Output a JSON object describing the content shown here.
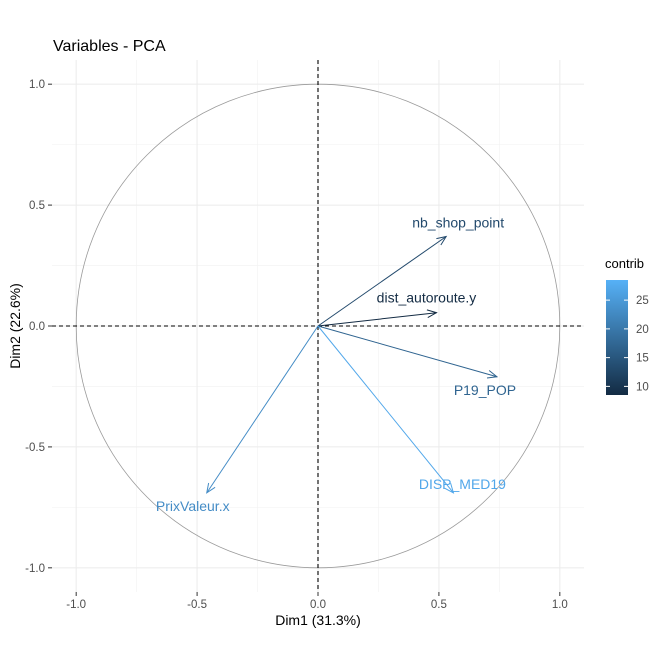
{
  "chart_data": {
    "type": "scatter",
    "title": "Variables - PCA",
    "xlabel": "Dim1 (31.3%)",
    "ylabel": "Dim2 (22.6%)",
    "xlim": [
      -1.1,
      1.1
    ],
    "ylim": [
      -1.1,
      1.1
    ],
    "x_ticks": [
      -1.0,
      -0.5,
      0.0,
      0.5,
      1.0
    ],
    "y_ticks": [
      -1.0,
      -0.5,
      0.0,
      0.5,
      1.0
    ],
    "x_tick_labels": [
      "-1.0",
      "-0.5",
      "0.0",
      "0.5",
      "1.0"
    ],
    "y_tick_labels": [
      "-1.0",
      "-0.5",
      "0.0",
      "0.5",
      "1.0"
    ],
    "grid": true,
    "unit_circle": true,
    "variables": [
      {
        "name": "nb_shop_point",
        "x": 0.53,
        "y": 0.37,
        "contrib": 13
      },
      {
        "name": "dist_autoroute.y",
        "x": 0.49,
        "y": 0.055,
        "contrib": 8
      },
      {
        "name": "P19_POP",
        "x": 0.74,
        "y": -0.21,
        "contrib": 17
      },
      {
        "name": "DISP_MED19",
        "x": 0.56,
        "y": -0.69,
        "contrib": 27
      },
      {
        "name": "PrixValeur.x",
        "x": -0.46,
        "y": -0.69,
        "contrib": 23
      }
    ],
    "legend": {
      "title": "contrib",
      "position": "right",
      "ticks": [
        10,
        15,
        20,
        25
      ],
      "range": [
        8.5,
        28.5
      ],
      "color_low": "#132b43",
      "color_high": "#56b1f7"
    }
  }
}
